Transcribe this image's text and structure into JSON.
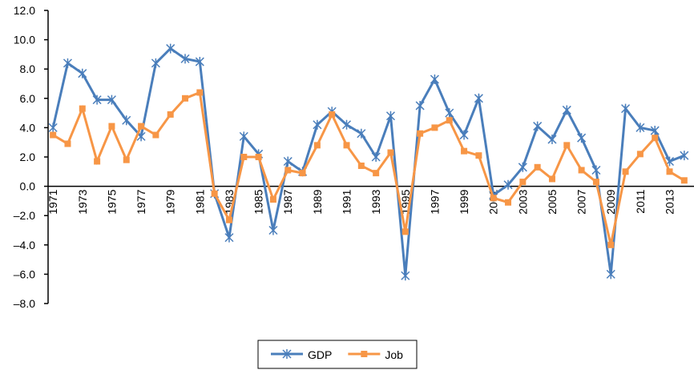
{
  "chart_data": {
    "type": "line",
    "categories": [
      "1971",
      null,
      "1973",
      null,
      "1975",
      null,
      "1977",
      null,
      "1979",
      null,
      "1981",
      null,
      "1983",
      null,
      "1985",
      null,
      "1987",
      null,
      "1989",
      null,
      "1991",
      null,
      "1993",
      null,
      "1995",
      null,
      "1997",
      null,
      "1999",
      null,
      "2001",
      null,
      "2003",
      null,
      "2005",
      null,
      "2007",
      null,
      "2009",
      null,
      "2011",
      null,
      "2013",
      null
    ],
    "series": [
      {
        "name": "GDP",
        "color": "#4a7ebb",
        "marker": "star",
        "values": [
          4.0,
          8.4,
          7.7,
          5.9,
          5.9,
          4.5,
          3.4,
          8.4,
          9.4,
          8.7,
          8.5,
          -0.5,
          -3.5,
          3.4,
          2.2,
          -3.0,
          1.7,
          1.0,
          4.2,
          5.1,
          4.2,
          3.6,
          2.0,
          4.8,
          -6.1,
          5.5,
          7.3,
          5.0,
          3.5,
          6.0,
          -0.6,
          0.1,
          1.3,
          4.1,
          3.2,
          5.2,
          3.3,
          1.1,
          -6.0,
          5.3,
          4.0,
          3.8,
          1.7,
          2.1
        ]
      },
      {
        "name": "Job",
        "color": "#f79646",
        "marker": "square",
        "values": [
          3.5,
          2.9,
          5.3,
          1.7,
          4.1,
          1.8,
          4.1,
          3.5,
          4.9,
          6.0,
          6.4,
          -0.5,
          -2.3,
          2.0,
          2.0,
          -0.9,
          1.1,
          0.9,
          2.8,
          4.9,
          2.8,
          1.4,
          0.9,
          2.3,
          -3.1,
          3.6,
          4.0,
          4.5,
          2.4,
          2.1,
          -0.8,
          -1.1,
          0.3,
          1.3,
          0.5,
          2.8,
          1.1,
          0.3,
          -4.0,
          1.0,
          2.2,
          3.3,
          1.0,
          0.4
        ]
      }
    ],
    "ylim": [
      -8,
      12
    ],
    "yticks": [
      {
        "value": 12,
        "label": "12.0"
      },
      {
        "value": 10,
        "label": "10.0"
      },
      {
        "value": 8,
        "label": "8.0"
      },
      {
        "value": 6,
        "label": "6.0"
      },
      {
        "value": 4,
        "label": "4.0"
      },
      {
        "value": 2,
        "label": "2.0"
      },
      {
        "value": 0,
        "label": "0.0"
      },
      {
        "value": -2,
        "label": "–2.0"
      },
      {
        "value": -4,
        "label": "–4.0"
      },
      {
        "value": -6,
        "label": "–6.0"
      },
      {
        "value": -8,
        "label": "–8.0"
      }
    ],
    "grid": false,
    "legend": "bottom"
  }
}
